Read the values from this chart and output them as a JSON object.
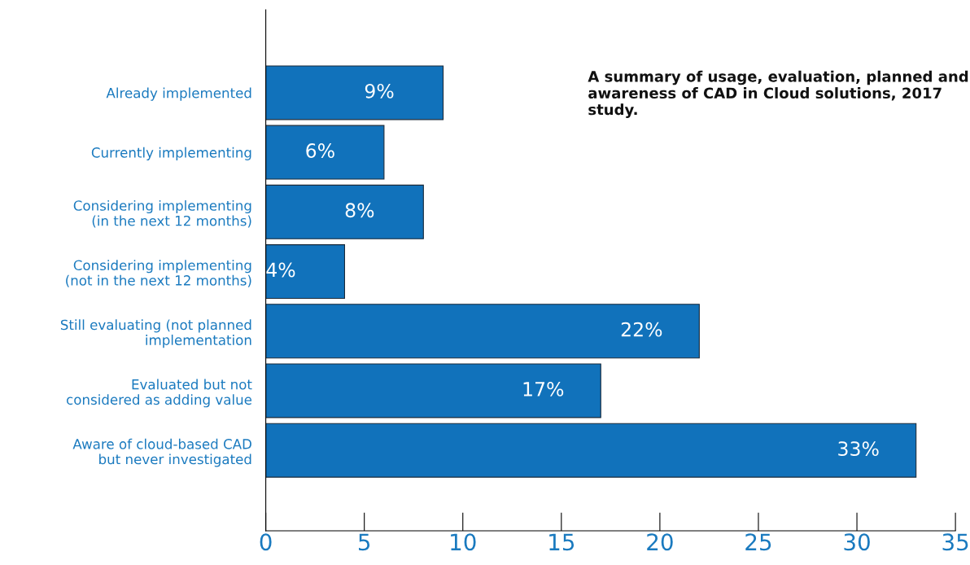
{
  "chart_data": {
    "type": "bar",
    "orientation": "horizontal",
    "categories": [
      "Already implemented",
      "Currently implementing",
      "Considering implementing\n(in the next 12 months)",
      "Considering implementing\n(not in the next 12 months)",
      "Still evaluating (not planned\nimplementation",
      "Evaluated but not\nconsidered as adding value",
      "Aware of cloud-based CAD\nbut never investigated"
    ],
    "values": [
      9,
      6,
      8,
      4,
      22,
      17,
      33
    ],
    "value_labels": [
      "9%",
      "6%",
      "8%",
      "4%",
      "22%",
      "17%",
      "33%"
    ],
    "color": "#1172bb",
    "xlim": [
      0,
      35
    ],
    "xticks": [
      0,
      5,
      10,
      15,
      20,
      25,
      30,
      35
    ],
    "grid": false,
    "legend": false,
    "annotations": [
      "A summary of usage, evaluation, planned and awareness of CAD in Cloud solutions, 2017 study."
    ]
  }
}
